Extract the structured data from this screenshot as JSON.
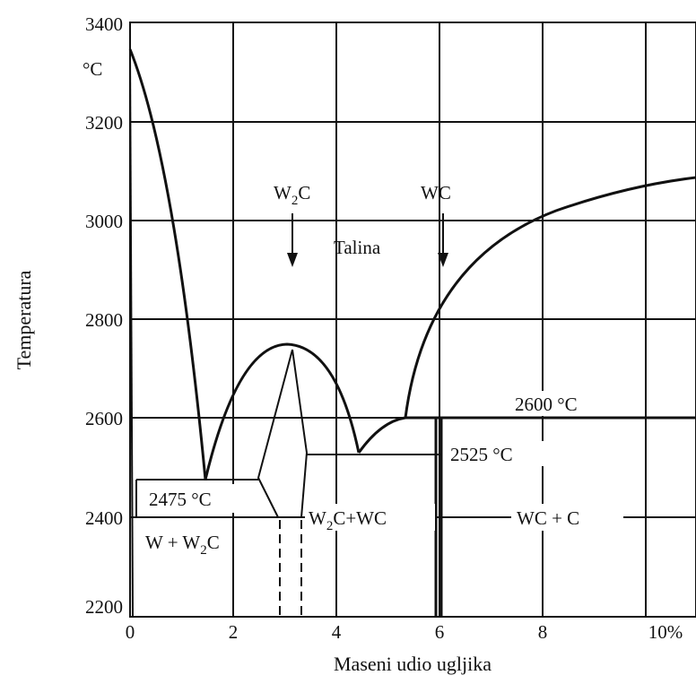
{
  "diagram": {
    "y_axis": {
      "title": "Temperatura",
      "unit": "°C",
      "ticks": [
        "3400",
        "3200",
        "3000",
        "2800",
        "2600",
        "2400",
        "2200"
      ]
    },
    "x_axis": {
      "title": "Maseni udio ugljika",
      "ticks": [
        "0",
        "2",
        "4",
        "6",
        "8",
        "10%"
      ]
    },
    "labels": {
      "w2c_marker_main": "W",
      "w2c_marker_sub": "2",
      "w2c_marker_tail": "C",
      "wc_marker": "WC",
      "liquid": "Talina",
      "t_2600": "2600 °C",
      "t_2525": "2525 °C",
      "t_2475": "2475 °C",
      "region_w_w2c_a": "W + W",
      "region_w_w2c_sub": "2",
      "region_w_w2c_b": "C",
      "region_w2c_wc_a": "W",
      "region_w2c_wc_sub": "2",
      "region_w2c_wc_b": "C+WC",
      "region_wc_c": "WC + C"
    }
  }
}
